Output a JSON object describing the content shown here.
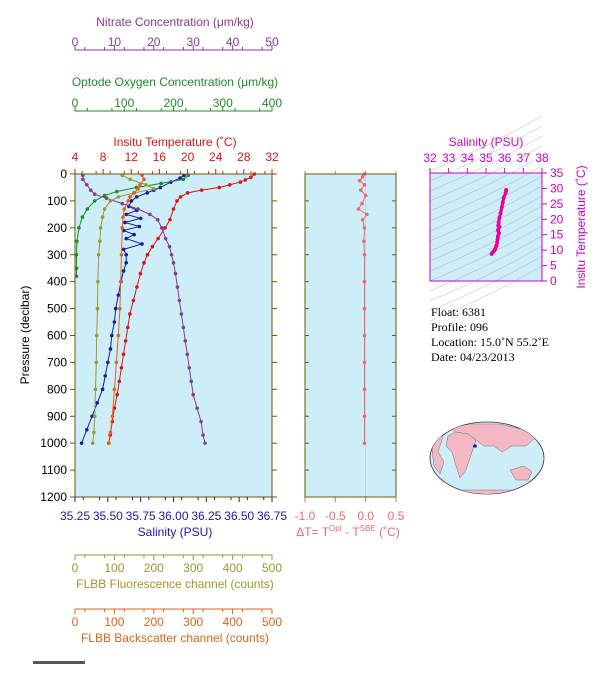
{
  "colors": {
    "nitrate": "#8b3a96",
    "oxygen": "#1e8c28",
    "temperature": "#e0140e",
    "salinity": "#1a1aa8",
    "fluorescence": "#9a9a2e",
    "backscatter": "#dc6418",
    "delta": "#ee6a6a",
    "salinity_ts": "#cc00cc",
    "ts_points": "#e8009a",
    "panel_bg": "#cdeef9",
    "frame": "#6b5b00"
  },
  "chart_data": [
    {
      "type": "line",
      "name": "main-profile",
      "ylabel": "Pressure (decibar)",
      "ylim": [
        0,
        1200
      ],
      "yticks": [
        "0",
        "100",
        "200",
        "300",
        "400",
        "500",
        "600",
        "700",
        "800",
        "900",
        "1000",
        "1100",
        "1200"
      ],
      "axes": {
        "nitrate": {
          "label": "Nitrate Concentration (μm/kg)",
          "range": [
            0,
            50
          ],
          "ticks": [
            "0",
            "10",
            "20",
            "30",
            "40",
            "50"
          ]
        },
        "oxygen": {
          "label": "Optode Oxygen Concentration (μm/kg)",
          "range": [
            0,
            400
          ],
          "ticks": [
            "0",
            "100",
            "200",
            "300",
            "400"
          ]
        },
        "temperature": {
          "label": "Insitu Temperature (˚C)",
          "range": [
            4,
            32
          ],
          "ticks": [
            "4",
            "8",
            "12",
            "16",
            "20",
            "24",
            "28",
            "32"
          ]
        },
        "salinity": {
          "label": "Salinity (PSU)",
          "range": [
            35.25,
            36.75
          ],
          "ticks": [
            "35.25",
            "35.50",
            "35.75",
            "36.00",
            "36.25",
            "36.50",
            "36.75"
          ]
        },
        "fluorescence": {
          "label": "FLBB Fluorescence channel (counts)",
          "range": [
            0,
            500
          ],
          "ticks": [
            "0",
            "100",
            "200",
            "300",
            "400",
            "500"
          ]
        },
        "backscatter": {
          "label": "FLBB Backscatter channel (counts)",
          "range": [
            0,
            500
          ],
          "ticks": [
            "0",
            "100",
            "200",
            "300",
            "400",
            "500"
          ]
        }
      },
      "series": [
        {
          "key": "temperature",
          "points": [
            [
              29.5,
              0
            ],
            [
              29.0,
              12
            ],
            [
              28.2,
              22
            ],
            [
              27.5,
              30
            ],
            [
              26.0,
              40
            ],
            [
              24.5,
              50
            ],
            [
              22.0,
              60
            ],
            [
              20.0,
              70
            ],
            [
              19.0,
              85
            ],
            [
              18.5,
              100
            ],
            [
              18.0,
              130
            ],
            [
              17.5,
              170
            ],
            [
              16.8,
              200
            ],
            [
              15.8,
              240
            ],
            [
              15.0,
              270
            ],
            [
              14.3,
              300
            ],
            [
              13.8,
              330
            ],
            [
              13.3,
              370
            ],
            [
              12.8,
              420
            ],
            [
              12.3,
              470
            ],
            [
              11.8,
              520
            ],
            [
              11.5,
              570
            ],
            [
              11.2,
              620
            ],
            [
              10.9,
              670
            ],
            [
              10.6,
              720
            ],
            [
              10.3,
              770
            ],
            [
              10.0,
              820
            ],
            [
              9.6,
              870
            ],
            [
              9.3,
              920
            ],
            [
              9.0,
              970
            ],
            [
              8.8,
              1000
            ]
          ]
        },
        {
          "key": "salinity",
          "points": [
            [
              36.08,
              5
            ],
            [
              36.05,
              15
            ],
            [
              35.98,
              30
            ],
            [
              35.9,
              50
            ],
            [
              35.85,
              60
            ],
            [
              35.8,
              70
            ],
            [
              35.72,
              85
            ],
            [
              35.68,
              100
            ],
            [
              35.66,
              120
            ],
            [
              35.72,
              135
            ],
            [
              35.64,
              150
            ],
            [
              35.75,
              165
            ],
            [
              35.63,
              180
            ],
            [
              35.74,
              195
            ],
            [
              35.62,
              210
            ],
            [
              35.7,
              225
            ],
            [
              35.64,
              240
            ],
            [
              35.76,
              260
            ],
            [
              35.62,
              280
            ],
            [
              35.64,
              300
            ],
            [
              35.64,
              330
            ],
            [
              35.62,
              360
            ],
            [
              35.6,
              400
            ],
            [
              35.58,
              450
            ],
            [
              35.56,
              500
            ],
            [
              35.55,
              550
            ],
            [
              35.53,
              600
            ],
            [
              35.52,
              650
            ],
            [
              35.5,
              700
            ],
            [
              35.48,
              750
            ],
            [
              35.46,
              800
            ],
            [
              35.42,
              850
            ],
            [
              35.38,
              900
            ],
            [
              35.34,
              950
            ],
            [
              35.3,
              1000
            ]
          ]
        },
        {
          "key": "nitrate",
          "points": [
            [
              2,
              5
            ],
            [
              2,
              20
            ],
            [
              3,
              40
            ],
            [
              4,
              60
            ],
            [
              5,
              75
            ],
            [
              8,
              90
            ],
            [
              12,
              110
            ],
            [
              16,
              130
            ],
            [
              19,
              150
            ],
            [
              21,
              170
            ],
            [
              22,
              200
            ],
            [
              23,
              240
            ],
            [
              24,
              270
            ],
            [
              24.5,
              300
            ],
            [
              25,
              330
            ],
            [
              25.5,
              370
            ],
            [
              26,
              420
            ],
            [
              26.5,
              470
            ],
            [
              27,
              520
            ],
            [
              27.5,
              570
            ],
            [
              28,
              620
            ],
            [
              28.5,
              670
            ],
            [
              29,
              720
            ],
            [
              29.5,
              770
            ],
            [
              30,
              820
            ],
            [
              31,
              870
            ],
            [
              32,
              920
            ],
            [
              32.5,
              970
            ],
            [
              33,
              1000
            ]
          ]
        },
        {
          "key": "oxygen",
          "points": [
            [
              230,
              5
            ],
            [
              220,
              20
            ],
            [
              175,
              35
            ],
            [
              125,
              50
            ],
            [
              85,
              65
            ],
            [
              60,
              80
            ],
            [
              40,
              100
            ],
            [
              25,
              130
            ],
            [
              15,
              160
            ],
            [
              8,
              200
            ],
            [
              4,
              250
            ],
            [
              3,
              300
            ],
            [
              3,
              350
            ],
            [
              3,
              380
            ]
          ]
        },
        {
          "key": "fluorescence",
          "points": [
            [
              120,
              5
            ],
            [
              140,
              20
            ],
            [
              180,
              40
            ],
            [
              200,
              55
            ],
            [
              150,
              70
            ],
            [
              110,
              85
            ],
            [
              90,
              100
            ],
            [
              75,
              130
            ],
            [
              70,
              160
            ],
            [
              65,
              200
            ],
            [
              63,
              250
            ],
            [
              60,
              300
            ],
            [
              58,
              400
            ],
            [
              57,
              500
            ],
            [
              55,
              600
            ],
            [
              54,
              700
            ],
            [
              52,
              800
            ],
            [
              50,
              900
            ],
            [
              48,
              960
            ],
            [
              45,
              1000
            ]
          ]
        },
        {
          "key": "backscatter",
          "points": [
            [
              170,
              5
            ],
            [
              175,
              20
            ],
            [
              165,
              40
            ],
            [
              160,
              55
            ],
            [
              150,
              70
            ],
            [
              140,
              85
            ],
            [
              135,
              100
            ],
            [
              125,
              130
            ],
            [
              122,
              160
            ],
            [
              120,
              200
            ],
            [
              118,
              300
            ],
            [
              116,
              400
            ],
            [
              114,
              500
            ],
            [
              110,
              600
            ],
            [
              105,
              700
            ],
            [
              100,
              800
            ],
            [
              95,
              900
            ],
            [
              90,
              960
            ],
            [
              85,
              1000
            ]
          ]
        }
      ]
    },
    {
      "type": "line",
      "name": "delta-t",
      "xlabel": "ΔT= T",
      "xlabel_sup1": "Opt",
      "xlabel_mid": " - T",
      "xlabel_sup2": "SBE",
      "xlabel_end": " (˚C)",
      "xlim": [
        -1.0,
        0.5
      ],
      "xticks": [
        "-1.0",
        "-0.5",
        "0.0",
        "0.5"
      ],
      "ylim": [
        0,
        1200
      ],
      "points": [
        [
          -0.02,
          0
        ],
        [
          -0.05,
          10
        ],
        [
          -0.1,
          25
        ],
        [
          -0.02,
          40
        ],
        [
          -0.08,
          60
        ],
        [
          0.0,
          80
        ],
        [
          -0.06,
          110
        ],
        [
          -0.12,
          130
        ],
        [
          0.02,
          150
        ],
        [
          -0.05,
          170
        ],
        [
          -0.02,
          200
        ],
        [
          -0.03,
          250
        ],
        [
          -0.02,
          300
        ],
        [
          -0.02,
          400
        ],
        [
          -0.02,
          500
        ],
        [
          -0.02,
          600
        ],
        [
          -0.02,
          700
        ],
        [
          -0.02,
          800
        ],
        [
          -0.02,
          900
        ],
        [
          -0.02,
          1000
        ]
      ]
    },
    {
      "type": "scatter",
      "name": "ts-diagram",
      "xlabel": "Salinity (PSU)",
      "ylabel": "Insitu Temperature (˚C)",
      "xlim": [
        32,
        38
      ],
      "ylim": [
        0,
        35
      ],
      "xticks": [
        "32",
        "33",
        "34",
        "35",
        "36",
        "37",
        "38"
      ],
      "yticks": [
        "0",
        "5",
        "10",
        "15",
        "20",
        "25",
        "30",
        "35"
      ],
      "points": [
        [
          36.08,
          29.5
        ],
        [
          36.05,
          28.5
        ],
        [
          35.95,
          27
        ],
        [
          35.9,
          25.5
        ],
        [
          35.85,
          24
        ],
        [
          35.78,
          22
        ],
        [
          35.72,
          20.5
        ],
        [
          35.68,
          19
        ],
        [
          35.66,
          18
        ],
        [
          35.72,
          17.5
        ],
        [
          35.64,
          16.5
        ],
        [
          35.7,
          15.5
        ],
        [
          35.64,
          14.5
        ],
        [
          35.62,
          13.5
        ],
        [
          35.6,
          12.5
        ],
        [
          35.56,
          11.5
        ],
        [
          35.53,
          11
        ],
        [
          35.5,
          10.5
        ],
        [
          35.46,
          10
        ],
        [
          35.4,
          9.5
        ],
        [
          35.3,
          8.8
        ]
      ]
    }
  ],
  "info": {
    "float": "Float:  6381",
    "profile": "Profile:  096",
    "location": "Location:  15.0˚N  55.2˚E",
    "date": "Date:  04/23/2013"
  }
}
